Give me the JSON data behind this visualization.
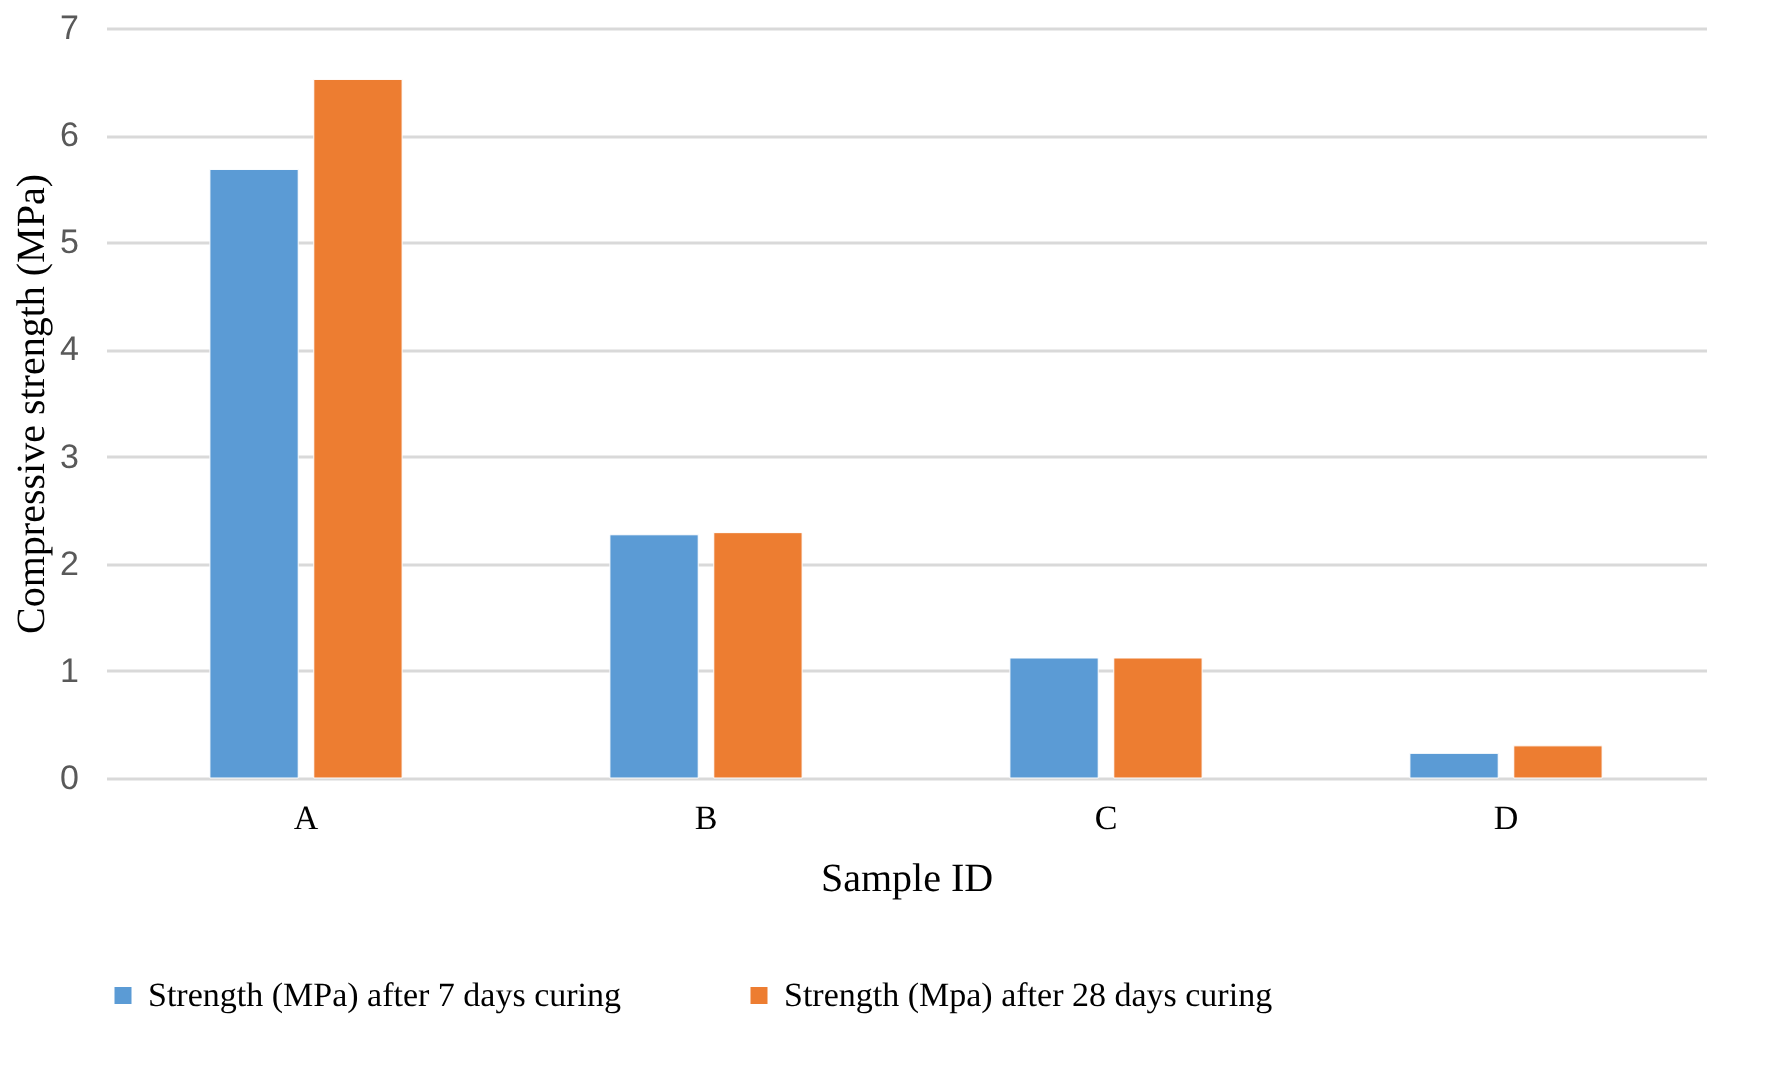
{
  "chart_data": {
    "type": "bar",
    "xlabel": "Sample ID",
    "ylabel": "Compressive strength (MPa)",
    "categories": [
      "A",
      "B",
      "C",
      "D"
    ],
    "series": [
      {
        "name": "Strength (MPa) after 7 days curing",
        "color": "#5b9bd5",
        "values": [
          5.68,
          2.27,
          1.12,
          0.23
        ]
      },
      {
        "name": "Strength (Mpa) after 28 days curing",
        "color": "#ed7d31",
        "values": [
          6.52,
          2.29,
          1.12,
          0.3
        ]
      }
    ],
    "ylim": [
      0,
      7
    ],
    "yticks": [
      0,
      1,
      2,
      3,
      4,
      5,
      6,
      7
    ],
    "grid": "y",
    "legend": "bottom"
  }
}
